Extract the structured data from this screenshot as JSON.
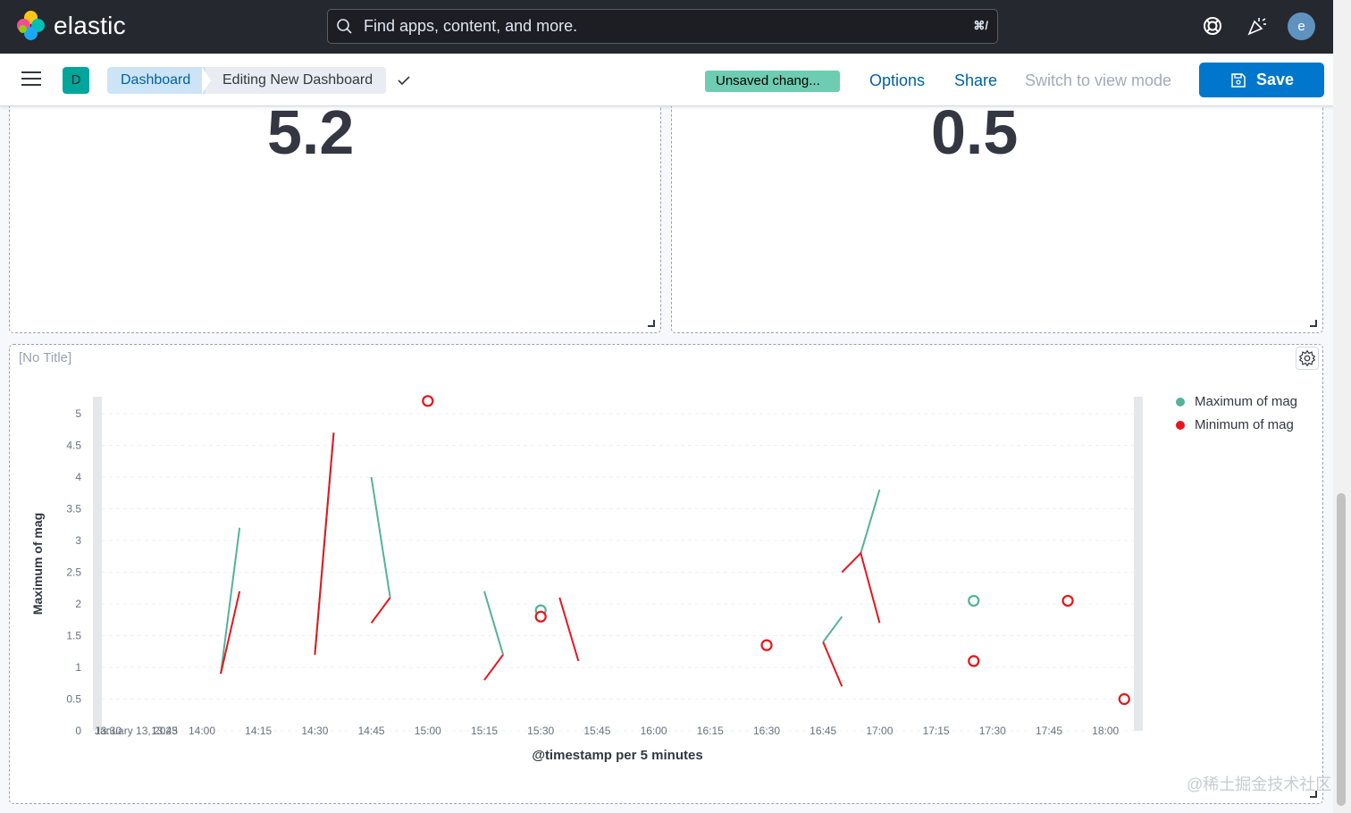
{
  "header": {
    "logo_text": "elastic",
    "search_placeholder": "Find apps, content, and more.",
    "search_shortcut": "⌘/",
    "avatar_initial": "e"
  },
  "toolbar": {
    "space_initial": "D",
    "breadcrumb_dashboard": "Dashboard",
    "breadcrumb_current": "Editing New Dashboard",
    "unsaved_badge": "Unsaved chang...",
    "options_label": "Options",
    "share_label": "Share",
    "view_mode_label": "Switch to view mode",
    "save_label": "Save"
  },
  "metrics": [
    {
      "value": "5.2"
    },
    {
      "value": "0.5"
    }
  ],
  "chart_panel": {
    "title": "[No Title]"
  },
  "watermark": "@稀土掘金技术社区",
  "colors": {
    "max_series": "#54b399",
    "min_series": "#e7161c",
    "accent": "#0077cc"
  },
  "chart_data": {
    "type": "line",
    "title": "",
    "xlabel": "@timestamp per 5 minutes",
    "ylabel": "Maximum of mag",
    "x_ticks": [
      "January 13, 2023",
      "13:30",
      "13:45",
      "14:00",
      "14:15",
      "14:30",
      "14:45",
      "15:00",
      "15:15",
      "15:30",
      "15:45",
      "16:00",
      "16:15",
      "16:30",
      "16:45",
      "17:00",
      "17:15",
      "17:30",
      "17:45",
      "18:00"
    ],
    "y_ticks": [
      "0",
      "0.5",
      "1",
      "1.5",
      "2",
      "2.5",
      "3",
      "3.5",
      "4",
      "4.5",
      "5"
    ],
    "ylim": [
      0,
      5
    ],
    "legend_position": "right",
    "series": [
      {
        "name": "Maximum of mag",
        "segments": [
          [
            [
              "14:05",
              0.9
            ],
            [
              "14:10",
              3.2
            ]
          ],
          [
            [
              "14:30",
              1.2
            ],
            [
              "14:35",
              4.7
            ]
          ],
          [
            [
              "14:45",
              4.0
            ],
            [
              "14:50",
              2.1
            ]
          ],
          [
            [
              "15:15",
              2.2
            ],
            [
              "15:20",
              1.2
            ]
          ],
          [
            [
              "16:45",
              1.4
            ],
            [
              "16:50",
              1.8
            ]
          ],
          [
            [
              "16:55",
              2.8
            ],
            [
              "17:00",
              3.8
            ]
          ]
        ],
        "points": [
          [
            "15:30",
            1.9
          ],
          [
            "17:25",
            2.05
          ]
        ]
      },
      {
        "name": "Minimum of mag",
        "segments": [
          [
            [
              "14:05",
              0.9
            ],
            [
              "14:10",
              2.2
            ]
          ],
          [
            [
              "14:30",
              1.2
            ],
            [
              "14:35",
              4.7
            ]
          ],
          [
            [
              "14:45",
              1.7
            ],
            [
              "14:50",
              2.1
            ]
          ],
          [
            [
              "15:15",
              0.8
            ],
            [
              "15:20",
              1.2
            ]
          ],
          [
            [
              "15:35",
              2.1
            ],
            [
              "15:40",
              1.1
            ]
          ],
          [
            [
              "16:45",
              1.4
            ],
            [
              "16:50",
              0.7
            ]
          ],
          [
            [
              "16:50",
              2.5
            ],
            [
              "16:55",
              2.8
            ],
            [
              "17:00",
              1.7
            ]
          ]
        ],
        "points": [
          [
            "15:00",
            5.2
          ],
          [
            "15:30",
            1.8
          ],
          [
            "16:30",
            1.35
          ],
          [
            "17:25",
            1.1
          ],
          [
            "17:50",
            2.05
          ],
          [
            "18:05",
            0.5
          ]
        ]
      }
    ]
  }
}
